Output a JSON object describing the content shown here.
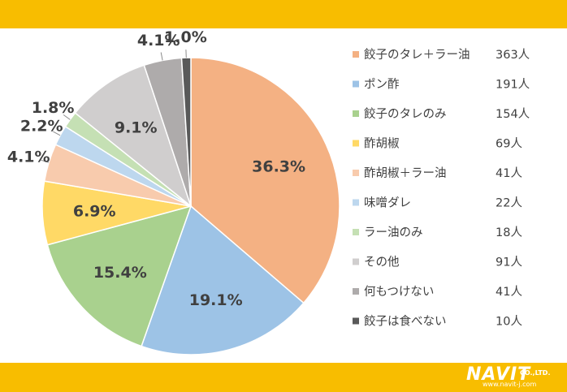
{
  "colors": {
    "band": "#F8BD00"
  },
  "chart_data": {
    "type": "pie",
    "title": "",
    "slices": [
      {
        "label": "餃子のタレ＋ラー油",
        "count": "363人",
        "percent": 36.3,
        "percent_label": "36.3%",
        "color": "#F4B183"
      },
      {
        "label": "ポン酢",
        "count": "191人",
        "percent": 19.1,
        "percent_label": "19.1%",
        "color": "#9DC3E6"
      },
      {
        "label": "餃子のタレのみ",
        "count": "154人",
        "percent": 15.4,
        "percent_label": "15.4%",
        "color": "#A9D18E"
      },
      {
        "label": "酢胡椒",
        "count": "69人",
        "percent": 6.9,
        "percent_label": "6.9%",
        "color": "#FFD966"
      },
      {
        "label": "酢胡椒＋ラー油",
        "count": "41人",
        "percent": 4.1,
        "percent_label": "4.1%",
        "color": "#F8CBAD"
      },
      {
        "label": "味噌ダレ",
        "count": "22人",
        "percent": 2.2,
        "percent_label": "2.2%",
        "color": "#BDD7EE"
      },
      {
        "label": "ラー油のみ",
        "count": "18人",
        "percent": 1.8,
        "percent_label": "1.8%",
        "color": "#C5E0B4"
      },
      {
        "label": "その他",
        "count": "91人",
        "percent": 9.1,
        "percent_label": "9.1%",
        "color": "#D0CECE"
      },
      {
        "label": "何もつけない",
        "count": "41人",
        "percent": 4.1,
        "percent_label": "4.1%",
        "color": "#AEABAB"
      },
      {
        "label": "餃子は食べない",
        "count": "10人",
        "percent": 1.0,
        "percent_label": "1.0%",
        "color": "#595959"
      }
    ],
    "legend_position": "right"
  },
  "footer": {
    "brand": "NAVIT",
    "company": "CO.,LTD.",
    "url": "www.navit-j.com"
  }
}
